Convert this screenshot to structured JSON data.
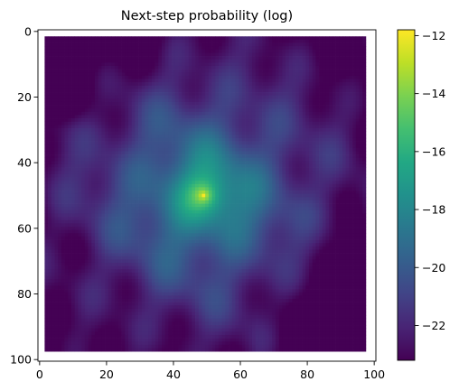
{
  "chart_data": {
    "type": "heatmap",
    "title": "Next-step probability (log)",
    "xlabel": "",
    "ylabel": "",
    "grid_size": [
      101,
      101
    ],
    "data_extent": {
      "x": [
        2,
        97
      ],
      "y": [
        2,
        97
      ]
    },
    "xlim": [
      -0.5,
      100.5
    ],
    "ylim": [
      100.5,
      -0.5
    ],
    "x_ticks": [
      0,
      20,
      40,
      60,
      80,
      100
    ],
    "y_ticks": [
      0,
      20,
      40,
      60,
      80,
      100
    ],
    "colormap": "viridis",
    "color_range": [
      -23.2,
      -11.8
    ],
    "colorbar_ticks": [
      -12,
      -14,
      -16,
      -18,
      -20,
      -22
    ],
    "colorbar_tick_labels": [
      "−12",
      "−14",
      "−16",
      "−18",
      "−20",
      "−22"
    ],
    "peak": {
      "x": 49,
      "y": 50,
      "value": -11.8
    },
    "min_value": -23.2,
    "grid": false,
    "legend": "none"
  }
}
